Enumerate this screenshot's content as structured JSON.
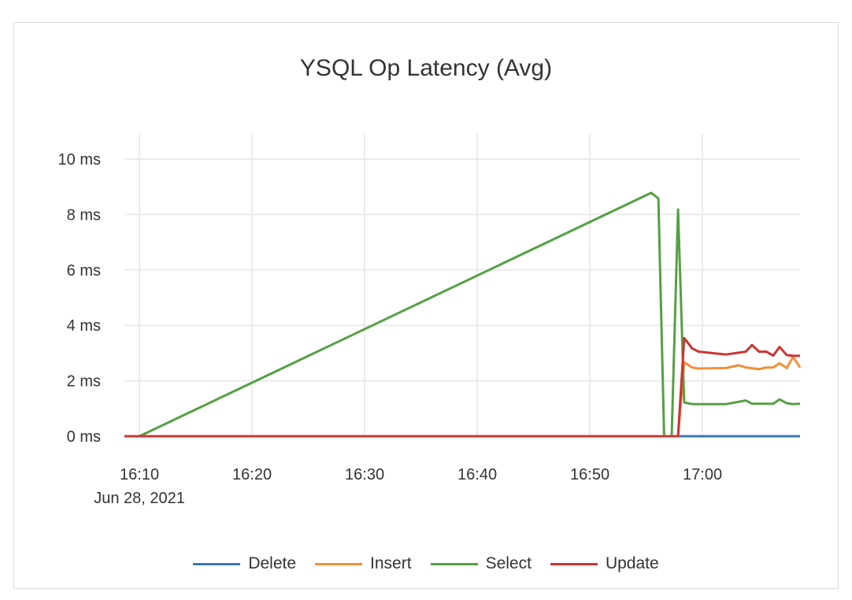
{
  "chart_data": {
    "type": "line",
    "title": "YSQL Op Latency (Avg)",
    "xlabel": "",
    "ylabel": "",
    "x_range": [
      "16:08:40",
      "17:08:40"
    ],
    "ylim": [
      0,
      10
    ],
    "y_ticks": [
      "0 ms",
      "2 ms",
      "4 ms",
      "6 ms",
      "8 ms",
      "10 ms"
    ],
    "y_tick_values": [
      0,
      2,
      4,
      6,
      8,
      10
    ],
    "x_ticks": [
      "16:10",
      "16:20",
      "16:30",
      "16:40",
      "16:50",
      "17:00"
    ],
    "x_tick_values": [
      "16:10:00",
      "16:20:00",
      "16:30:00",
      "16:40:00",
      "16:50:00",
      "17:00:00"
    ],
    "x_date_label": "Jun 28, 2021",
    "grid": true,
    "legend_position": "bottom",
    "series": [
      {
        "name": "Delete",
        "color": "#3a78b5",
        "points": [
          [
            "16:08:40",
            0
          ],
          [
            "17:08:40",
            0
          ]
        ]
      },
      {
        "name": "Insert",
        "color": "#f0903a",
        "points": [
          [
            "16:08:40",
            0
          ],
          [
            "16:57:50",
            0
          ],
          [
            "16:58:23",
            2.67
          ],
          [
            "16:59:05",
            2.48
          ],
          [
            "16:59:39",
            2.44
          ],
          [
            "17:02:06",
            2.46
          ],
          [
            "17:03:13",
            2.56
          ],
          [
            "17:03:51",
            2.48
          ],
          [
            "17:05:02",
            2.42
          ],
          [
            "17:05:40",
            2.48
          ],
          [
            "17:06:17",
            2.48
          ],
          [
            "17:06:51",
            2.63
          ],
          [
            "17:07:29",
            2.46
          ],
          [
            "17:08:03",
            2.86
          ],
          [
            "17:08:40",
            2.48
          ]
        ]
      },
      {
        "name": "Select",
        "color": "#55a043",
        "points": [
          [
            "16:08:40",
            0
          ],
          [
            "16:10:00",
            0
          ],
          [
            "16:55:27",
            8.78
          ],
          [
            "16:56:05",
            8.58
          ],
          [
            "16:56:36",
            0
          ],
          [
            "16:57:16",
            0
          ],
          [
            "16:57:50",
            8.18
          ],
          [
            "16:58:23",
            1.22
          ],
          [
            "16:59:05",
            1.16
          ],
          [
            "17:02:06",
            1.16
          ],
          [
            "17:03:51",
            1.29
          ],
          [
            "17:04:24",
            1.17
          ],
          [
            "17:06:17",
            1.17
          ],
          [
            "17:06:51",
            1.33
          ],
          [
            "17:07:29",
            1.19
          ],
          [
            "17:08:03",
            1.16
          ],
          [
            "17:08:40",
            1.17
          ]
        ]
      },
      {
        "name": "Update",
        "color": "#cc3333",
        "points": [
          [
            "16:08:40",
            0
          ],
          [
            "16:57:50",
            0
          ],
          [
            "16:58:23",
            3.54
          ],
          [
            "16:59:05",
            3.17
          ],
          [
            "16:59:39",
            3.05
          ],
          [
            "17:02:06",
            2.95
          ],
          [
            "17:03:51",
            3.05
          ],
          [
            "17:04:24",
            3.29
          ],
          [
            "17:05:02",
            3.05
          ],
          [
            "17:05:40",
            3.05
          ],
          [
            "17:06:17",
            2.91
          ],
          [
            "17:06:51",
            3.22
          ],
          [
            "17:07:29",
            2.93
          ],
          [
            "17:08:03",
            2.9
          ],
          [
            "17:08:40",
            2.9
          ]
        ]
      }
    ]
  }
}
